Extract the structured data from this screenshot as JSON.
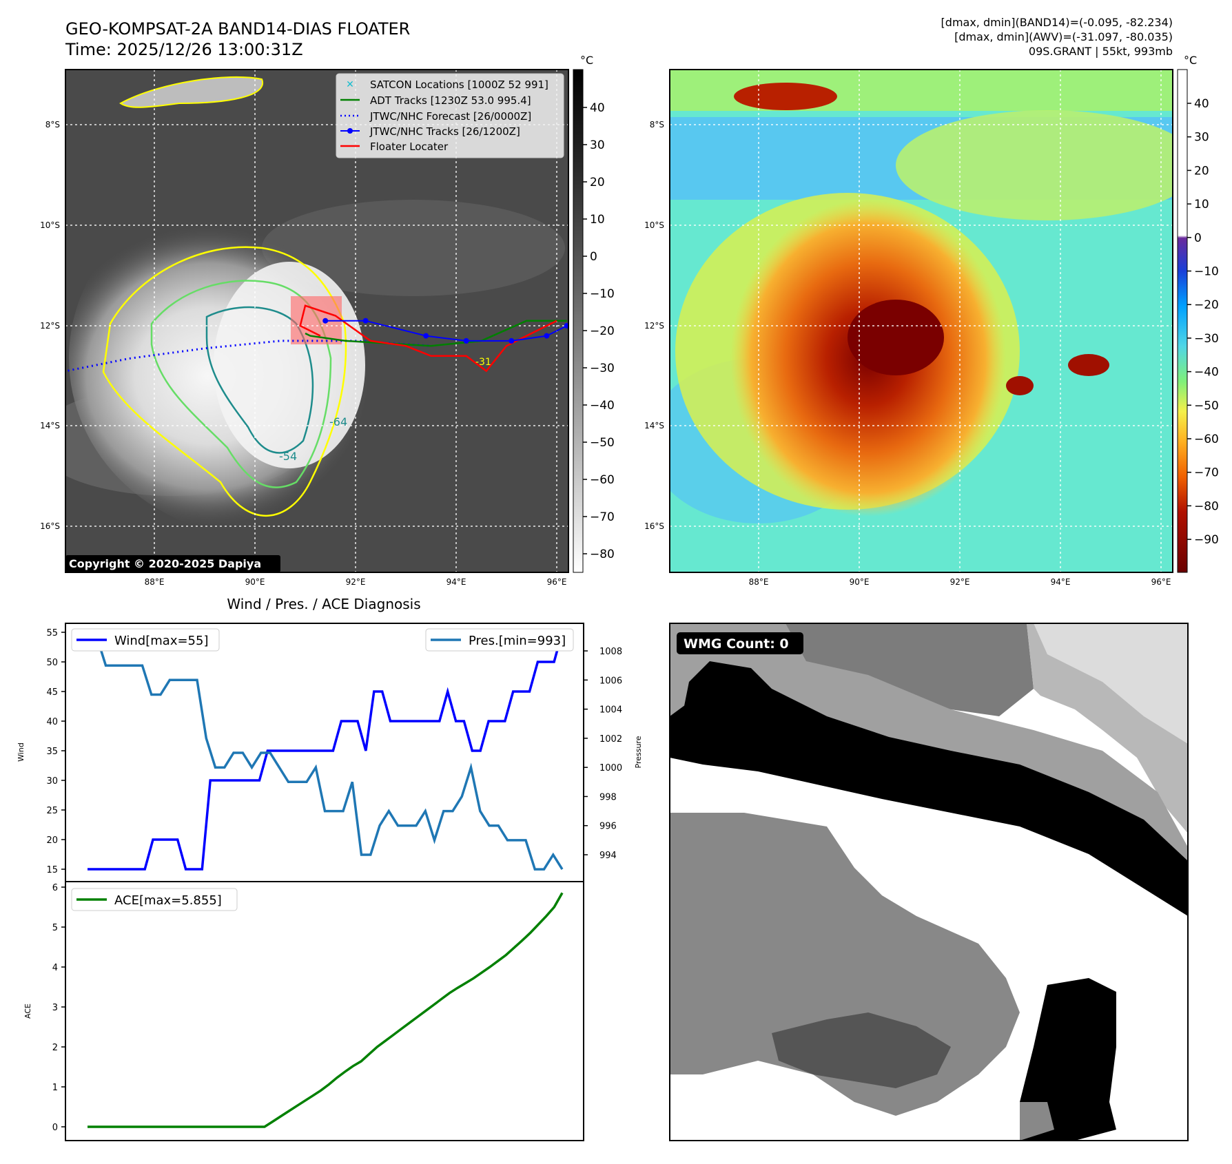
{
  "header": {
    "title": "GEO-KOMPSAT-2A BAND14-DIAS FLOATER",
    "time": "Time: 2025/12/26 13:00:31Z",
    "info_line1": "[dmax, dmin](BAND14)=(-0.095, -82.234)",
    "info_line2": "[dmax, dmin](AWV)=(-31.097, -80.035)",
    "info_line3": "09S.GRANT | 55kt, 993mb"
  },
  "map": {
    "lat_labels": [
      "8°S",
      "10°S",
      "12°S",
      "14°S",
      "16°S"
    ],
    "lon_labels": [
      "88°E",
      "90°E",
      "92°E",
      "94°E",
      "96°E"
    ],
    "copyright": "Copyright © 2020-2025 Dapiya",
    "contour_labels": [
      "-64",
      "-54",
      "-31"
    ],
    "legend": [
      {
        "label": "SATCON Locations [1000Z 52 991]",
        "color": "#17becf",
        "style": "x"
      },
      {
        "label": "ADT Tracks [1230Z 53.0 995.4]",
        "color": "#008000",
        "style": "line"
      },
      {
        "label": "JTWC/NHC Forecast [26/0000Z]",
        "color": "#0000ff",
        "style": "dot"
      },
      {
        "label": "JTWC/NHC Tracks [26/1200Z]",
        "color": "#0000ff",
        "style": "marker"
      },
      {
        "label": "Floater Locater",
        "color": "#ff0000",
        "style": "line"
      }
    ],
    "jtwc_track": [
      [
        96.2,
        -12.0
      ],
      [
        95.8,
        -12.2
      ],
      [
        95.1,
        -12.3
      ],
      [
        94.2,
        -12.3
      ],
      [
        93.4,
        -12.2
      ],
      [
        92.2,
        -11.9
      ],
      [
        91.4,
        -11.9
      ]
    ],
    "jtwc_forecast": [
      [
        86.0,
        -12.95
      ],
      [
        87.5,
        -12.65
      ],
      [
        89.0,
        -12.45
      ],
      [
        90.5,
        -12.3
      ],
      [
        92.0,
        -12.3
      ],
      [
        93.5,
        -12.4
      ]
    ],
    "adt_track": [
      [
        96.2,
        -11.9
      ],
      [
        95.4,
        -11.9
      ],
      [
        94.5,
        -12.3
      ],
      [
        93.5,
        -12.4
      ],
      [
        92.6,
        -12.35
      ],
      [
        91.8,
        -12.3
      ],
      [
        91.1,
        -12.2
      ],
      [
        91.0,
        -12.15
      ]
    ],
    "floater_locator": [
      [
        96.0,
        -11.9
      ],
      [
        95.0,
        -12.4
      ],
      [
        94.6,
        -12.9
      ],
      [
        94.2,
        -12.6
      ],
      [
        93.5,
        -12.6
      ],
      [
        93.0,
        -12.4
      ],
      [
        92.3,
        -12.3
      ],
      [
        91.6,
        -11.8
      ],
      [
        91.0,
        -11.6
      ],
      [
        90.9,
        -12.0
      ],
      [
        91.3,
        -12.2
      ]
    ]
  },
  "bt_colorbar": {
    "unit": "°C",
    "ticks": [
      "40",
      "30",
      "20",
      "10",
      "0",
      "−10",
      "−20",
      "−30",
      "−40",
      "−50",
      "−60",
      "−70",
      "−80"
    ]
  },
  "awv_colorbar": {
    "unit": "°C",
    "ticks": [
      "40",
      "30",
      "20",
      "10",
      "0",
      "−10",
      "−20",
      "−30",
      "−40",
      "−50",
      "−60",
      "−70",
      "−80",
      "−90"
    ]
  },
  "diag": {
    "title": "Wind / Pres. / ACE Diagnosis",
    "wind_ylabel": "Wind",
    "pres_ylabel": "Pressure",
    "ace_ylabel": "ACE",
    "wind_ticks": [
      "55",
      "50",
      "45",
      "40",
      "35",
      "30",
      "25",
      "20",
      "15"
    ],
    "pres_ticks": [
      "1008",
      "1006",
      "1004",
      "1002",
      "1000",
      "998",
      "996",
      "994"
    ],
    "ace_ticks": [
      "6",
      "5",
      "4",
      "3",
      "2",
      "1",
      "0"
    ]
  },
  "wmg": {
    "label": "WMG Count: 0"
  },
  "chart_data": [
    {
      "type": "line",
      "title": "Wind / Pres. / ACE Diagnosis",
      "ylabel": "Wind",
      "ylim": [
        14.5,
        56
      ],
      "series": [
        {
          "name": "Wind[max=55]",
          "color": "#0000ff",
          "values": [
            15,
            15,
            15,
            15,
            15,
            15,
            15,
            15,
            20,
            20,
            20,
            20,
            15,
            15,
            15,
            30,
            30,
            30,
            30,
            30,
            30,
            30,
            35,
            35,
            35,
            35,
            35,
            35,
            35,
            35,
            35,
            40,
            40,
            40,
            35,
            45,
            45,
            40,
            40,
            40,
            40,
            40,
            40,
            40,
            45,
            40,
            40,
            35,
            35,
            40,
            40,
            40,
            45,
            45,
            45,
            50,
            50,
            50,
            55
          ]
        }
      ]
    },
    {
      "type": "line",
      "ylabel": "Pressure",
      "ylim": [
        992.2,
        1009.5
      ],
      "series": [
        {
          "name": "Pres.[min=993]",
          "color": "#1f77b4",
          "values": [
            1009,
            1009,
            1007,
            1007,
            1007,
            1007,
            1007,
            1005,
            1005,
            1006,
            1006,
            1006,
            1006,
            1002,
            1000,
            1000,
            1001,
            1001,
            1000,
            1001,
            1001,
            1000,
            999,
            999,
            999,
            1000,
            997,
            997,
            997,
            999,
            994,
            994,
            996,
            997,
            996,
            996,
            996,
            997,
            995,
            997,
            997,
            998,
            1000,
            997,
            996,
            996,
            995,
            995,
            995,
            993,
            993,
            994,
            993
          ]
        }
      ]
    },
    {
      "type": "line",
      "ylabel": "ACE",
      "ylim": [
        -0.3,
        6.2
      ],
      "series": [
        {
          "name": "ACE[max=5.855]",
          "color": "#008000",
          "values": [
            0,
            0,
            0,
            0,
            0,
            0,
            0,
            0,
            0,
            0,
            0,
            0,
            0,
            0,
            0,
            0,
            0,
            0,
            0,
            0,
            0,
            0,
            0,
            0.13,
            0.26,
            0.39,
            0.52,
            0.65,
            0.78,
            0.91,
            1.06,
            1.23,
            1.38,
            1.52,
            1.64,
            1.82,
            2.0,
            2.15,
            2.3,
            2.45,
            2.6,
            2.75,
            2.9,
            3.05,
            3.2,
            3.35,
            3.48,
            3.6,
            3.72,
            3.86,
            4.0,
            4.15,
            4.3,
            4.48,
            4.66,
            4.85,
            5.06,
            5.27,
            5.5,
            5.855
          ]
        }
      ]
    }
  ]
}
